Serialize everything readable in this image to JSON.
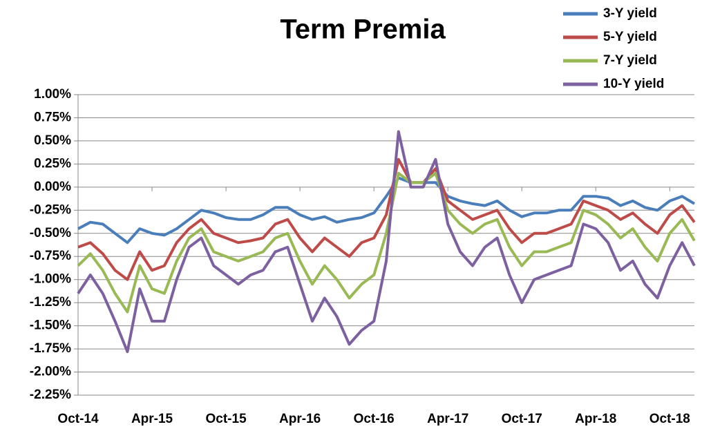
{
  "chart_data": {
    "type": "line",
    "title": "Term Premia",
    "categories": [
      "Oct-14",
      null,
      null,
      null,
      null,
      null,
      "Apr-15",
      null,
      null,
      null,
      null,
      null,
      "Oct-15",
      null,
      null,
      null,
      null,
      null,
      "Apr-16",
      null,
      null,
      null,
      null,
      null,
      "Oct-16",
      null,
      null,
      null,
      null,
      null,
      "Apr-17",
      null,
      null,
      null,
      null,
      null,
      "Oct-17",
      null,
      null,
      null,
      null,
      null,
      "Apr-18",
      null,
      null,
      null,
      null,
      null,
      "Oct-18",
      null,
      null
    ],
    "series": [
      {
        "name": "3-Y yield",
        "color": "#4a7ebb",
        "values": [
          -0.45,
          -0.38,
          -0.4,
          -0.5,
          -0.6,
          -0.45,
          -0.5,
          -0.52,
          -0.45,
          -0.35,
          -0.25,
          -0.28,
          -0.33,
          -0.35,
          -0.35,
          -0.3,
          -0.22,
          -0.22,
          -0.3,
          -0.35,
          -0.32,
          -0.38,
          -0.35,
          -0.33,
          -0.28,
          -0.1,
          0.1,
          0.05,
          0.05,
          0.05,
          -0.1,
          -0.15,
          -0.18,
          -0.2,
          -0.15,
          -0.25,
          -0.32,
          -0.28,
          -0.28,
          -0.25,
          -0.25,
          -0.1,
          -0.1,
          -0.12,
          -0.2,
          -0.15,
          -0.22,
          -0.25,
          -0.15,
          -0.1,
          -0.18
        ]
      },
      {
        "name": "5-Y yield",
        "color": "#be4b48",
        "values": [
          -0.65,
          -0.6,
          -0.72,
          -0.9,
          -1.0,
          -0.7,
          -0.9,
          -0.85,
          -0.6,
          -0.45,
          -0.35,
          -0.5,
          -0.55,
          -0.6,
          -0.58,
          -0.55,
          -0.4,
          -0.35,
          -0.55,
          -0.7,
          -0.55,
          -0.65,
          -0.75,
          -0.6,
          -0.55,
          -0.3,
          0.3,
          0.05,
          0.05,
          0.2,
          -0.15,
          -0.25,
          -0.35,
          -0.3,
          -0.25,
          -0.45,
          -0.6,
          -0.5,
          -0.5,
          -0.45,
          -0.4,
          -0.15,
          -0.2,
          -0.25,
          -0.35,
          -0.28,
          -0.4,
          -0.5,
          -0.3,
          -0.2,
          -0.38
        ]
      },
      {
        "name": "7-Y yield",
        "color": "#98b954",
        "values": [
          -0.85,
          -0.72,
          -0.9,
          -1.15,
          -1.35,
          -0.85,
          -1.1,
          -1.15,
          -0.8,
          -0.55,
          -0.45,
          -0.7,
          -0.75,
          -0.8,
          -0.75,
          -0.7,
          -0.55,
          -0.5,
          -0.8,
          -1.05,
          -0.85,
          -1.0,
          -1.2,
          -1.05,
          -0.95,
          -0.5,
          0.15,
          0.05,
          0.05,
          0.15,
          -0.25,
          -0.4,
          -0.5,
          -0.4,
          -0.35,
          -0.65,
          -0.85,
          -0.7,
          -0.7,
          -0.65,
          -0.6,
          -0.25,
          -0.3,
          -0.4,
          -0.55,
          -0.45,
          -0.65,
          -0.8,
          -0.5,
          -0.35,
          -0.58
        ]
      },
      {
        "name": "10-Y yield",
        "color": "#7d60a0",
        "values": [
          -1.15,
          -0.95,
          -1.15,
          -1.45,
          -1.78,
          -1.1,
          -1.45,
          -1.45,
          -1.0,
          -0.65,
          -0.55,
          -0.85,
          -0.95,
          -1.05,
          -0.95,
          -0.9,
          -0.7,
          -0.65,
          -1.05,
          -1.45,
          -1.2,
          -1.4,
          -1.7,
          -1.55,
          -1.45,
          -0.8,
          0.6,
          0.0,
          0.0,
          0.3,
          -0.4,
          -0.7,
          -0.85,
          -0.65,
          -0.55,
          -0.95,
          -1.25,
          -1.0,
          -0.95,
          -0.9,
          -0.85,
          -0.4,
          -0.45,
          -0.6,
          -0.9,
          -0.8,
          -1.05,
          -1.2,
          -0.85,
          -0.6,
          -0.85
        ]
      }
    ],
    "ylim": [
      -2.25,
      1
    ],
    "yticks": [
      {
        "value": 1,
        "label": "1.00%"
      },
      {
        "value": 0.75,
        "label": "0.75%"
      },
      {
        "value": 0.5,
        "label": "0.50%"
      },
      {
        "value": 0.25,
        "label": "0.25%"
      },
      {
        "value": 0,
        "label": "0.00%"
      },
      {
        "value": -0.25,
        "label": "-0.25%"
      },
      {
        "value": -0.5,
        "label": "-0.50%"
      },
      {
        "value": -0.75,
        "label": "-0.75%"
      },
      {
        "value": -1,
        "label": "-1.00%"
      },
      {
        "value": -1.25,
        "label": "-1.25%"
      },
      {
        "value": -1.5,
        "label": "-1.50%"
      },
      {
        "value": -1.75,
        "label": "-1.75%"
      },
      {
        "value": -2,
        "label": "-2.00%"
      },
      {
        "value": -2.25,
        "label": "-2.25%"
      }
    ],
    "grid": true,
    "legend": "top-right"
  }
}
